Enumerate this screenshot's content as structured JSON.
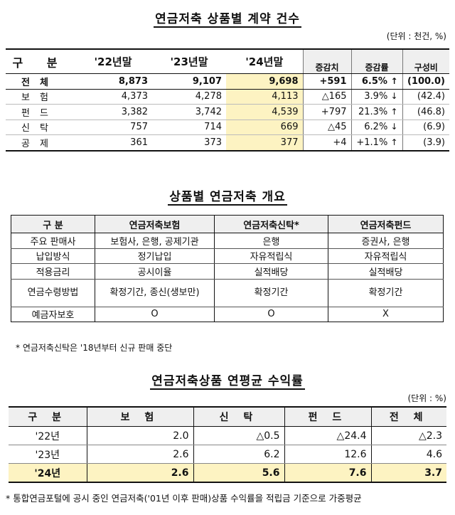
{
  "table1": {
    "title": "연금저축 상품별 계약 건수",
    "unit": "(단위 : 천건, %)",
    "headers": [
      "구 분",
      "'22년말",
      "'23년말",
      "'24년말",
      "증감치",
      "증감률",
      "구성비"
    ],
    "rows": [
      {
        "label": "전체",
        "y22": "8,873",
        "y23": "9,107",
        "y24": "9,698",
        "change": "+591",
        "rate": "6.5%",
        "dir": "↑",
        "share": "(100.0)"
      },
      {
        "label": "보험",
        "y22": "4,373",
        "y23": "4,278",
        "y24": "4,113",
        "change": "△165",
        "rate": "3.9%",
        "dir": "↓",
        "share": "(42.4)"
      },
      {
        "label": "펀드",
        "y22": "3,382",
        "y23": "3,742",
        "y24": "4,539",
        "change": "+797",
        "rate": "21.3%",
        "dir": "↑",
        "share": "(46.8)"
      },
      {
        "label": "신탁",
        "y22": "757",
        "y23": "714",
        "y24": "669",
        "change": "△45",
        "rate": "6.2%",
        "dir": "↓",
        "share": "(6.9)"
      },
      {
        "label": "공제",
        "y22": "361",
        "y23": "373",
        "y24": "377",
        "change": "+4",
        "rate": "+1.1%",
        "dir": "↑",
        "share": "(3.9)"
      }
    ]
  },
  "table2": {
    "title": "상품별 연금저축 개요",
    "headers": [
      "구 분",
      "연금저축보험",
      "연금저축신탁*",
      "연금저축펀드"
    ],
    "rows": [
      [
        "주요 판매사",
        "보험사, 은행, 공제기관",
        "은행",
        "증권사, 은행"
      ],
      [
        "납입방식",
        "정기납입",
        "자유적립식",
        "자유적립식"
      ],
      [
        "적용금리",
        "공시이율",
        "실적배당",
        "실적배당"
      ],
      [
        "연금수령방법",
        "확정기간, 종신(생보만)",
        "확정기간",
        "확정기간"
      ],
      [
        "예금자보호",
        "O",
        "O",
        "X"
      ]
    ],
    "footnote": "* 연금저축신탁은 '18년부터 신규 판매 중단"
  },
  "table3": {
    "title": "연금저축상품 연평균 수익률",
    "unit": "(단위 : %)",
    "headers": [
      "구 분",
      "보 험",
      "신 탁",
      "펀 드",
      "전 체"
    ],
    "rows": [
      [
        "'22년",
        "2.0",
        "△0.5",
        "△24.4",
        "△2.3"
      ],
      [
        "'23년",
        "2.6",
        "6.2",
        "12.6",
        "4.6"
      ],
      [
        "'24년",
        "2.6",
        "5.6",
        "7.6",
        "3.7"
      ]
    ],
    "footnote": "* 통합연금포털에 공시 중인 연금저축('01년 이후 판매)상품 수익률을 적립금 기준으로 가중평균"
  }
}
